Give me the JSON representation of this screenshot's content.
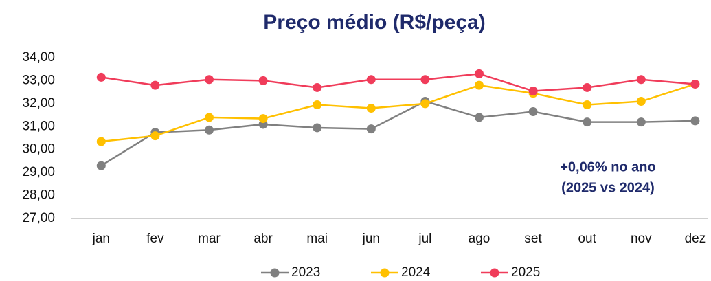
{
  "chart_data": {
    "type": "line",
    "title": "Preço médio (R$/peça)",
    "annotations": [
      "+0,06% no ano",
      "(2025 vs 2024)"
    ],
    "categories": [
      "jan",
      "fev",
      "mar",
      "abr",
      "mai",
      "jun",
      "jul",
      "ago",
      "set",
      "out",
      "nov",
      "dez"
    ],
    "series": [
      {
        "name": "2023",
        "color": "#808080",
        "values": [
          29.3,
          30.75,
          30.85,
          31.1,
          30.95,
          30.9,
          32.1,
          31.4,
          31.65,
          31.2,
          31.2,
          31.25
        ]
      },
      {
        "name": "2024",
        "color": "#ffc000",
        "values": [
          30.35,
          30.6,
          31.4,
          31.35,
          31.95,
          31.8,
          32.0,
          32.8,
          32.45,
          31.95,
          32.1,
          32.85
        ]
      },
      {
        "name": "2025",
        "color": "#f03c5a",
        "values": [
          33.15,
          32.8,
          33.05,
          33.0,
          32.7,
          33.05,
          33.05,
          33.3,
          32.55,
          32.7,
          33.05,
          32.85
        ]
      }
    ],
    "ylim": [
      27,
      34
    ],
    "yticks": [
      {
        "value": 27,
        "label": "27,00"
      },
      {
        "value": 28,
        "label": "28,00"
      },
      {
        "value": 29,
        "label": "29,00"
      },
      {
        "value": 30,
        "label": "30,00"
      },
      {
        "value": 31,
        "label": "31,00"
      },
      {
        "value": 32,
        "label": "32,00"
      },
      {
        "value": 33,
        "label": "33,00"
      },
      {
        "value": 34,
        "label": "34,00"
      }
    ],
    "grid": false,
    "legend": "bottom"
  }
}
